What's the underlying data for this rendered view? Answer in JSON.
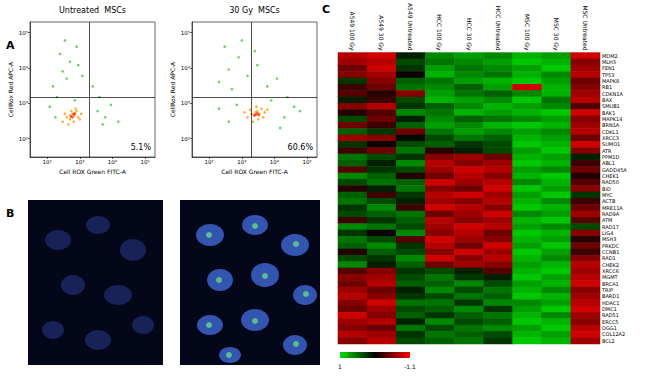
{
  "panel_labels": [
    "A",
    "B",
    "C"
  ],
  "chart_data": [
    {
      "type": "scatter",
      "title": "Untreated  MSCs",
      "x_label": "Cell ROX Green FITC-A",
      "y_label": "CellRox Red APC-A",
      "log": true,
      "grid": false,
      "marker": "dot",
      "xlim": [
        30,
        200000
      ],
      "ylim": [
        30,
        200000
      ],
      "xticks": [
        {
          "value": 100,
          "label": "10²"
        },
        {
          "value": 1000,
          "label": "10³"
        },
        {
          "value": 10000,
          "label": "10⁴"
        },
        {
          "value": 100000,
          "label": "10⁵"
        }
      ],
      "yticks": [
        {
          "value": 100,
          "label": "10²"
        },
        {
          "value": 1000,
          "label": "10³"
        },
        {
          "value": 10000,
          "label": "10⁴"
        },
        {
          "value": 100000,
          "label": "10⁵"
        }
      ],
      "gates": {
        "x": 2000,
        "y": 1500
      },
      "annotations": [
        {
          "value": 5.1,
          "label": "5.1%"
        }
      ],
      "series": [
        {
          "color": "#33cc33",
          "values": [
            [
              150,
              3000
            ],
            [
              300,
              8000
            ],
            [
              500,
              15000
            ],
            [
              250,
              25000
            ],
            [
              800,
              40000
            ],
            [
              400,
              5000
            ],
            [
              1200,
              6000
            ],
            [
              200,
              1500
            ],
            [
              120,
              800
            ],
            [
              180,
              400
            ],
            [
              3500,
              600
            ],
            [
              6000,
              400
            ],
            [
              9000,
              900
            ],
            [
              15000,
              300
            ],
            [
              4000,
              1500
            ],
            [
              700,
              1200
            ],
            [
              2500,
              3000
            ],
            [
              350,
              60000
            ],
            [
              900,
              12000
            ],
            [
              5000,
              250
            ]
          ]
        },
        {
          "color": "#ff9900",
          "values": [
            [
              300,
              300
            ],
            [
              400,
              400
            ],
            [
              500,
              350
            ],
            [
              600,
              500
            ],
            [
              700,
              450
            ],
            [
              800,
              600
            ],
            [
              450,
              250
            ],
            [
              350,
              500
            ],
            [
              900,
              400
            ],
            [
              1100,
              500
            ],
            [
              550,
              600
            ],
            [
              650,
              300
            ],
            [
              1000,
              350
            ],
            [
              750,
              700
            ],
            [
              500,
              450
            ]
          ]
        },
        {
          "color": "#ff2200",
          "values": [
            [
              550,
              420
            ],
            [
              650,
              480
            ],
            [
              600,
              400
            ],
            [
              700,
              520
            ]
          ]
        }
      ]
    },
    {
      "type": "scatter",
      "title": "30 Gy  MSCs",
      "x_label": "Cell ROX Green FITC-A",
      "y_label": "CellRox Red APC-A",
      "log": true,
      "grid": false,
      "marker": "dot",
      "xlim": [
        30,
        200000
      ],
      "ylim": [
        30,
        200000
      ],
      "xticks": [
        {
          "value": 100,
          "label": "10²"
        },
        {
          "value": 1000,
          "label": "10³"
        },
        {
          "value": 10000,
          "label": "10⁴"
        },
        {
          "value": 100000,
          "label": "10⁵"
        }
      ],
      "yticks": [
        {
          "value": 100,
          "label": "10²"
        },
        {
          "value": 1000,
          "label": "10³"
        },
        {
          "value": 10000,
          "label": "10⁴"
        },
        {
          "value": 100000,
          "label": "10⁵"
        }
      ],
      "gates": {
        "x": 2000,
        "y": 1500
      },
      "annotations": [
        {
          "value": 60.6,
          "label": "60.6%"
        }
      ],
      "series": [
        {
          "color": "#33cc33",
          "values": [
            [
              200,
              4000
            ],
            [
              400,
              9000
            ],
            [
              800,
              20000
            ],
            [
              300,
              40000
            ],
            [
              1500,
              6000
            ],
            [
              3000,
              12000
            ],
            [
              6000,
              3000
            ],
            [
              12000,
              5000
            ],
            [
              25000,
              1500
            ],
            [
              40000,
              800
            ],
            [
              200,
              700
            ],
            [
              400,
              300
            ],
            [
              700,
              900
            ],
            [
              15000,
              200
            ],
            [
              8000,
              1200
            ],
            [
              500,
              2500
            ],
            [
              2500,
              30000
            ],
            [
              1000,
              60000
            ],
            [
              20000,
              400
            ],
            [
              60000,
              600
            ]
          ]
        },
        {
          "color": "#ff9900",
          "values": [
            [
              1500,
              400
            ],
            [
              2000,
              500
            ],
            [
              2500,
              450
            ],
            [
              3000,
              600
            ],
            [
              3500,
              500
            ],
            [
              4000,
              700
            ],
            [
              2200,
              300
            ],
            [
              1800,
              650
            ],
            [
              4500,
              400
            ],
            [
              5000,
              550
            ],
            [
              2800,
              800
            ],
            [
              3200,
              350
            ],
            [
              1200,
              550
            ],
            [
              6000,
              650
            ],
            [
              2600,
              550
            ]
          ]
        },
        {
          "color": "#ff2200",
          "values": [
            [
              2700,
              480
            ],
            [
              3000,
              520
            ],
            [
              2400,
              450
            ],
            [
              3300,
              460
            ]
          ]
        }
      ]
    },
    {
      "type": "heatmap",
      "categories": [
        "A549 100 Gy",
        "A549 30 Gy",
        "A549 Untreated",
        "HCC 100 Gy",
        "HCC 30 Gy",
        "HCC Untreated",
        "MSC 100 Gy",
        "MSC 30 Gy",
        "MSC Untreated"
      ],
      "rows": [
        "MDM2",
        "MLH3",
        "FEN1",
        "TP53",
        "MAPK8",
        "RB1",
        "CDKN1A",
        "BAX",
        "SMUB1",
        "BAK1",
        "MAPK14",
        "BRN1A",
        "CDKL1",
        "XRCC3",
        "SUMO1",
        "ATR",
        "PPM1D",
        "ABL1",
        "GADD45A",
        "CHEK1",
        "RAD50",
        "BID",
        "MYC",
        "ACTB",
        "MRE11A",
        "RAD9A",
        "ATM",
        "RAD17",
        "LIG4",
        "MSH3",
        "PRKDC",
        "CCNB1",
        "RAD1",
        "CHEK2",
        "XRCC6",
        "MGMT",
        "BRCA1",
        "TRIP",
        "BARD1",
        "HDAC1",
        "DMC1",
        "RAD51",
        "ERCC5",
        "OGG1",
        "COL12A2",
        "BCL2"
      ],
      "cells": [
        [
          -0.8,
          -0.9,
          0.1,
          0.6,
          0.7,
          0.6,
          0.8,
          0.7,
          -0.9
        ],
        [
          -0.7,
          -0.8,
          0.3,
          0.5,
          0.6,
          0.7,
          0.9,
          0.8,
          -0.6
        ],
        [
          -0.5,
          -0.9,
          0.2,
          0.7,
          0.5,
          0.6,
          0.7,
          0.9,
          -0.7
        ],
        [
          -0.6,
          -0.7,
          -0.1,
          0.8,
          0.6,
          0.5,
          0.8,
          0.6,
          -0.8
        ],
        [
          0.2,
          -0.6,
          0.4,
          0.5,
          0.7,
          0.8,
          0.9,
          0.7,
          -0.5
        ],
        [
          -0.3,
          -0.5,
          0.5,
          0.6,
          0.4,
          0.7,
          -0.9,
          0.8,
          -0.6
        ],
        [
          -0.4,
          -0.2,
          -0.6,
          0.7,
          0.5,
          0.4,
          0.6,
          0.8,
          -0.7
        ],
        [
          0.1,
          -0.3,
          0.3,
          0.8,
          0.7,
          0.6,
          0.9,
          0.5,
          -0.8
        ],
        [
          -0.6,
          -0.8,
          0.2,
          0.4,
          0.6,
          0.8,
          0.7,
          0.6,
          -0.4
        ],
        [
          -0.2,
          -0.4,
          0.6,
          0.5,
          0.8,
          0.7,
          0.8,
          0.9,
          -0.9
        ],
        [
          0.3,
          -0.5,
          0.1,
          0.6,
          0.4,
          0.5,
          0.6,
          0.7,
          -0.6
        ],
        [
          -0.5,
          -0.3,
          0.4,
          0.7,
          0.6,
          0.8,
          0.9,
          0.8,
          -0.7
        ],
        [
          0.4,
          0.2,
          -0.5,
          0.5,
          0.7,
          0.6,
          0.7,
          0.6,
          -0.8
        ],
        [
          -0.7,
          -0.6,
          0.0,
          0.3,
          0.5,
          0.4,
          0.8,
          0.7,
          -0.5
        ],
        [
          0.2,
          -0.1,
          0.3,
          0.4,
          0.2,
          0.3,
          0.9,
          0.8,
          -0.9
        ],
        [
          -0.3,
          -0.5,
          0.5,
          -0.2,
          0.1,
          0.3,
          0.7,
          0.9,
          -0.6
        ],
        [
          0.5,
          0.3,
          0.2,
          -0.6,
          -0.7,
          -0.5,
          0.8,
          0.7,
          0.1
        ],
        [
          0.4,
          0.1,
          0.6,
          -0.8,
          -0.6,
          -0.7,
          0.9,
          0.8,
          -0.3
        ],
        [
          -0.4,
          0.2,
          0.3,
          -0.7,
          -0.9,
          -0.8,
          0.7,
          0.6,
          -0.5
        ],
        [
          0.6,
          0.4,
          -0.2,
          -0.5,
          -0.8,
          -0.6,
          0.8,
          0.9,
          -0.2
        ],
        [
          0.3,
          0.5,
          0.4,
          -0.9,
          -0.7,
          -0.8,
          0.6,
          0.8,
          -0.4
        ],
        [
          -0.2,
          0.1,
          0.5,
          -0.6,
          -0.5,
          -0.9,
          0.9,
          0.7,
          -0.6
        ],
        [
          0.4,
          -0.3,
          0.2,
          -0.8,
          -0.9,
          -0.7,
          0.7,
          0.9,
          0.2
        ],
        [
          0.5,
          0.3,
          0.1,
          -0.7,
          -0.6,
          -0.8,
          0.8,
          0.6,
          -0.3
        ],
        [
          0.2,
          0.6,
          -0.3,
          -0.9,
          -0.8,
          -0.6,
          0.9,
          0.8,
          -0.5
        ],
        [
          0.3,
          0.4,
          0.5,
          -0.5,
          -0.7,
          -0.9,
          0.6,
          0.7,
          -0.7
        ],
        [
          -0.3,
          0.2,
          0.4,
          -0.8,
          -0.6,
          -0.7,
          0.8,
          0.9,
          -0.4
        ],
        [
          0.6,
          0.5,
          0.3,
          -0.7,
          -0.9,
          -0.8,
          0.7,
          0.6,
          0.3
        ],
        [
          0.2,
          -0.1,
          0.6,
          -0.6,
          -0.8,
          -0.5,
          0.9,
          0.8,
          -0.6
        ],
        [
          0.5,
          0.3,
          -0.4,
          -0.9,
          -0.7,
          -0.6,
          0.8,
          0.7,
          -0.2
        ],
        [
          0.4,
          0.6,
          0.2,
          -0.8,
          -0.5,
          -0.9,
          0.7,
          0.9,
          -0.5
        ],
        [
          -0.2,
          0.4,
          0.3,
          -0.6,
          -0.9,
          -0.7,
          0.9,
          0.7,
          -0.3
        ],
        [
          0.3,
          0.2,
          0.6,
          -0.9,
          -0.6,
          -0.8,
          0.8,
          0.6,
          -0.6
        ],
        [
          0.6,
          0.1,
          0.4,
          -0.5,
          -0.7,
          -0.6,
          0.7,
          0.8,
          -0.8
        ],
        [
          -0.4,
          -0.6,
          0.2,
          0.3,
          0.1,
          -0.4,
          0.8,
          0.9,
          -0.7
        ],
        [
          -0.6,
          -0.7,
          0.3,
          0.5,
          0.2,
          0.1,
          0.9,
          0.7,
          -0.8
        ],
        [
          -0.5,
          -0.8,
          0.4,
          0.4,
          0.6,
          0.3,
          0.7,
          0.8,
          -0.9
        ],
        [
          -0.7,
          -0.5,
          0.1,
          0.6,
          0.3,
          0.5,
          0.8,
          0.6,
          -0.6
        ],
        [
          -0.8,
          -0.6,
          0.2,
          0.3,
          0.5,
          0.4,
          0.9,
          0.8,
          -0.7
        ],
        [
          -0.6,
          -0.9,
          0.5,
          0.5,
          0.2,
          0.6,
          0.6,
          0.7,
          -0.8
        ],
        [
          -0.5,
          -0.7,
          0.3,
          0.4,
          0.6,
          0.2,
          0.7,
          0.9,
          -0.9
        ],
        [
          -0.9,
          -0.6,
          0.4,
          0.2,
          0.4,
          0.5,
          0.8,
          0.6,
          -0.7
        ],
        [
          -0.7,
          -0.8,
          0.1,
          0.6,
          0.3,
          0.4,
          0.9,
          0.8,
          -0.6
        ],
        [
          -0.6,
          -0.5,
          0.5,
          0.3,
          0.5,
          0.6,
          0.7,
          0.9,
          -0.8
        ],
        [
          -0.8,
          -0.7,
          0.2,
          0.5,
          0.4,
          0.3,
          0.8,
          0.7,
          -0.9
        ],
        [
          -0.6,
          -0.8,
          0.3,
          0.4,
          0.5,
          0.2,
          0.9,
          0.8,
          -0.7
        ]
      ],
      "colorbar": {
        "range": [
          1,
          -1.1
        ],
        "ticks": [
          1,
          -1.1
        ]
      }
    }
  ]
}
